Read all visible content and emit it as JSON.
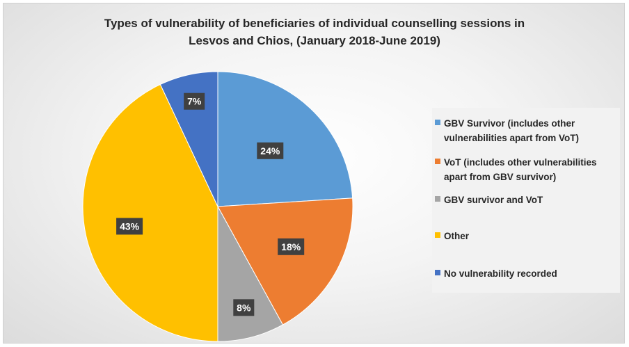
{
  "chart_data": {
    "type": "pie",
    "title_lines": [
      "Types of vulnerability of beneficiaries of individual counselling sessions in",
      "Lesvos and Chios, (January 2018-June 2019)"
    ],
    "start_angle": "12 o'clock",
    "direction": "clockwise",
    "legend_position": "right",
    "slices": [
      {
        "label": "GBV Survivor (includes other vulnerabilities apart from VoT)",
        "legend_lines": [
          "GBV Survivor (includes other",
          "vulnerabilities apart from VoT)"
        ],
        "value": 24,
        "data_label": "24%",
        "color": "#5B9BD5"
      },
      {
        "label": "VoT (includes other vulnerabilities apart from GBV survivor)",
        "legend_lines": [
          "VoT (includes other vulnerabilities",
          "apart from GBV survivor)"
        ],
        "value": 18,
        "data_label": "18%",
        "color": "#ED7D31"
      },
      {
        "label": "GBV survivor and VoT",
        "legend_lines": [
          "GBV survivor and VoT"
        ],
        "value": 8,
        "data_label": "8%",
        "color": "#A5A5A5"
      },
      {
        "label": "Other",
        "legend_lines": [
          "Other"
        ],
        "value": 43,
        "data_label": "43%",
        "color": "#FFC000"
      },
      {
        "label": "No vulnerability recorded",
        "legend_lines": [
          "No vulnerability recorded"
        ],
        "value": 7,
        "data_label": "7%",
        "color": "#4472C4"
      }
    ],
    "data_label_box_color": "#404040"
  }
}
